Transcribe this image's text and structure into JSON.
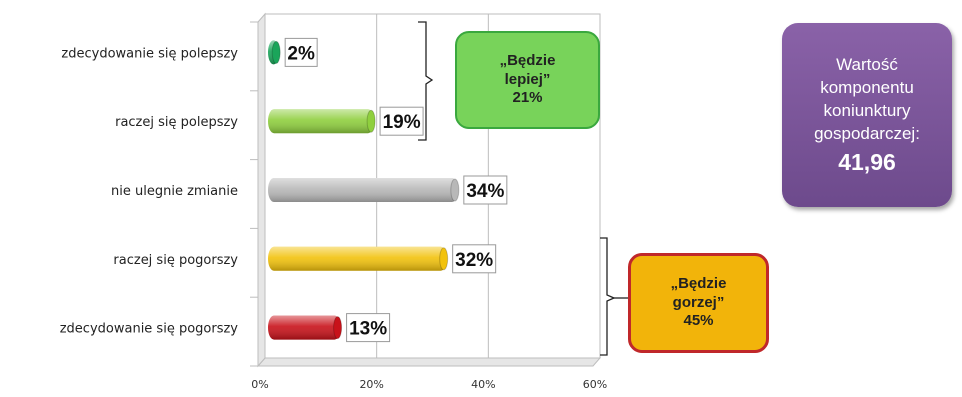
{
  "chart_data": {
    "type": "bar",
    "orientation": "horizontal",
    "categories": [
      "zdecydowanie się polepszy",
      "raczej się polepszy",
      "nie ulegnie zmianie",
      "raczej się pogorszy",
      "zdecydowanie się pogorszy"
    ],
    "values": [
      2,
      19,
      34,
      32,
      13
    ],
    "data_labels": [
      "2%",
      "19%",
      "34%",
      "32%",
      "13%"
    ],
    "bar_colors": [
      "#1aa55a",
      "#8fcf3e",
      "#b8b8b8",
      "#f2c20c",
      "#c8121a"
    ],
    "xlim": [
      0,
      60
    ],
    "x_ticks": [
      0,
      20,
      40,
      60
    ],
    "x_tick_labels": [
      "0%",
      "20%",
      "40%",
      "60%"
    ],
    "grid": true,
    "title": "",
    "xlabel": "",
    "ylabel": ""
  },
  "callouts": {
    "better": {
      "lines": [
        "„Będzie",
        "lepiej”",
        "21%"
      ],
      "color": "#78d35a"
    },
    "worse": {
      "lines": [
        "„Będzie",
        "gorzej”",
        "45%"
      ],
      "color": "#f2b40a"
    }
  },
  "indicator": {
    "lines": [
      "Wartość",
      "komponentu",
      "koniunktury",
      "gospodarczej:"
    ],
    "value": "41,96",
    "color": "#7a55a0"
  }
}
